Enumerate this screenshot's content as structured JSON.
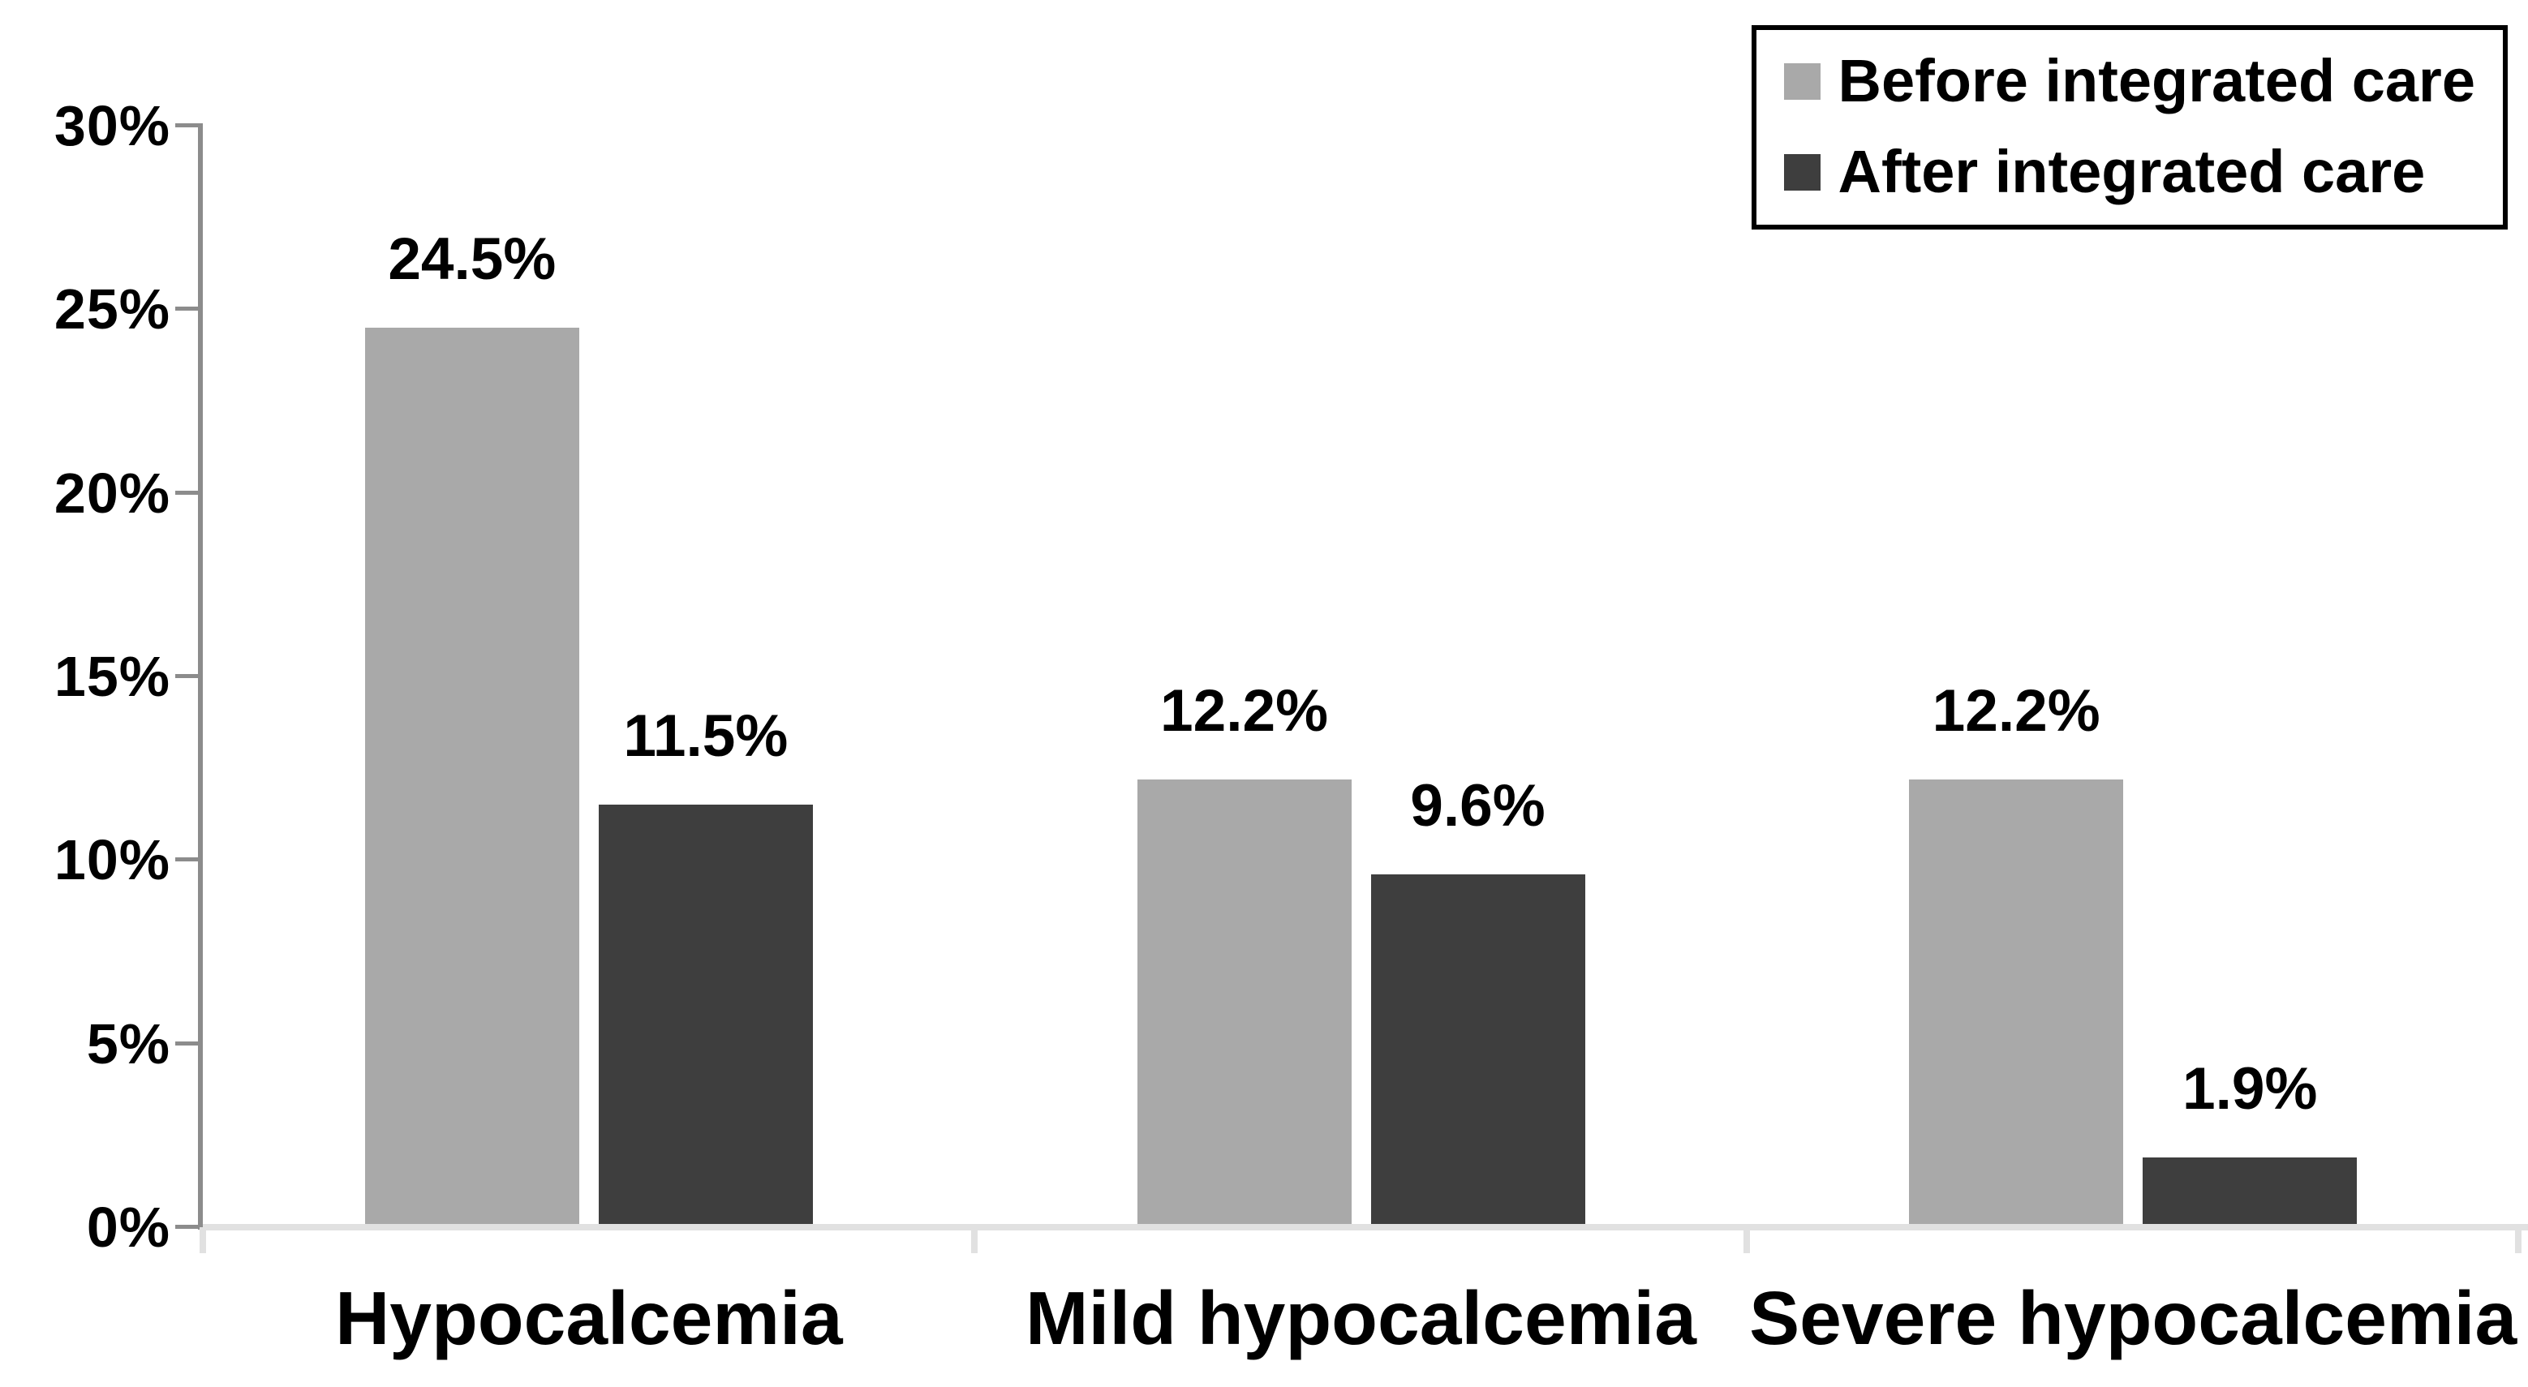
{
  "chart_data": {
    "type": "bar",
    "title": "",
    "xlabel": "",
    "ylabel": "",
    "grid": false,
    "categories": [
      "Hypocalcemia",
      "Mild hypocalcemia",
      "Severe hypocalcemia"
    ],
    "series": [
      {
        "name": "Before integrated care",
        "color": "#A9A9A9",
        "values": [
          24.5,
          12.2,
          12.2
        ],
        "value_labels": [
          "24.5%",
          "12.2%",
          "12.2%"
        ]
      },
      {
        "name": "After integrated care",
        "color": "#3E3E3E",
        "values": [
          11.5,
          9.6,
          1.9
        ],
        "value_labels": [
          "11.5%",
          "9.6%",
          "1.9%"
        ]
      }
    ],
    "y_axis": {
      "min": 0,
      "max": 30,
      "tick_labels": [
        "30%",
        "25%",
        "20%",
        "15%",
        "10%",
        "5%",
        "0%"
      ],
      "tick_values": [
        30,
        25,
        20,
        15,
        10,
        5,
        0
      ]
    },
    "legend": {
      "position": "top-right",
      "entries": [
        {
          "label": "Before integrated care",
          "color": "#A9A9A9"
        },
        {
          "label": "After integrated care",
          "color": "#3E3E3E"
        }
      ]
    },
    "axis_colors": {
      "y_axis_line": "#8C8C8C",
      "x_axis_line": "#E1E1E1"
    }
  }
}
